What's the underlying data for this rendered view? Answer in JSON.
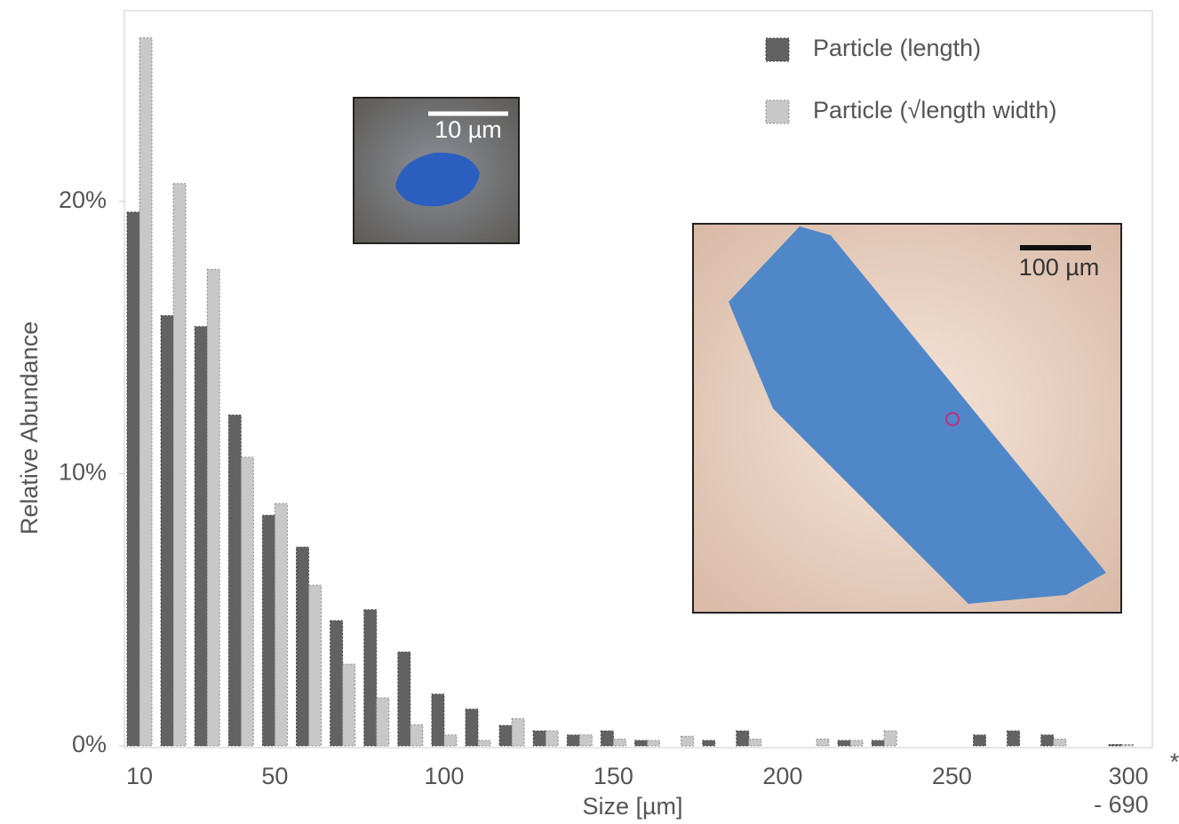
{
  "chart_data": {
    "type": "bar",
    "x_label": "Size [µm]",
    "y_label": "Relative Abundance",
    "categories": [
      "10",
      null,
      null,
      null,
      "50",
      null,
      null,
      null,
      null,
      "100",
      null,
      null,
      null,
      null,
      "150",
      null,
      null,
      null,
      null,
      "200",
      null,
      null,
      null,
      null,
      "250",
      null,
      null,
      null,
      null,
      "300\n- 690"
    ],
    "series": [
      {
        "name": "Particle (length)",
        "color": "#626262",
        "values": [
          19.6,
          15.8,
          15.4,
          12.15,
          8.47,
          7.3,
          4.6,
          5.0,
          3.45,
          1.9,
          1.35,
          0.75,
          0.55,
          0.4,
          0.55,
          0.2,
          0,
          0.2,
          0.55,
          0,
          0,
          0.2,
          0.2,
          0,
          0,
          0.4,
          0.55,
          0.4,
          0,
          0.05
        ]
      },
      {
        "name": "Particle (√length width)",
        "color": "#c8c8c8",
        "values": [
          26.0,
          20.65,
          17.5,
          10.6,
          8.9,
          5.9,
          3.0,
          1.76,
          0.78,
          0.4,
          0.2,
          1.0,
          0.55,
          0.4,
          0.25,
          0.2,
          0.35,
          0,
          0.25,
          0,
          0.25,
          0.2,
          0.55,
          0,
          0,
          0,
          0,
          0.25,
          0,
          0.05
        ]
      }
    ],
    "ylim": [
      0,
      27
    ],
    "yticks": [
      {
        "value": 0,
        "label": "0%"
      },
      {
        "value": 10,
        "label": "10%"
      },
      {
        "value": 20,
        "label": "20%"
      }
    ],
    "legend": "top-right",
    "annotations": [
      "10 µm",
      "100 µm",
      "*"
    ]
  }
}
